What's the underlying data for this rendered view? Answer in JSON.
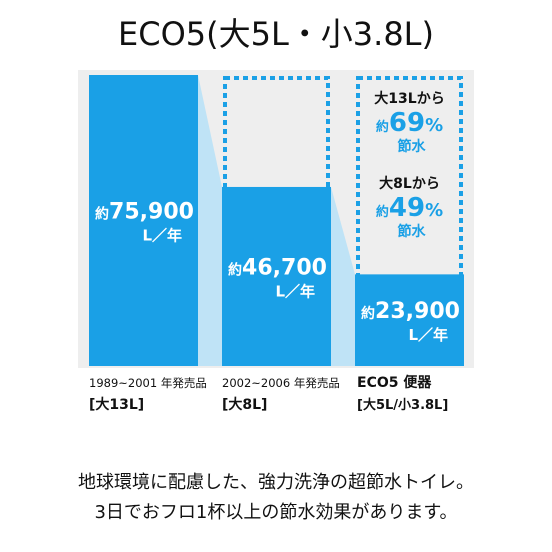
{
  "title": "ECO5(大5L・小3.8L)",
  "footer": {
    "line1": "地球環境に配慮した、強力洗浄の超節水トイレ。",
    "line2": "3日でおフロ1杯以上の節水効果があります。"
  },
  "colors": {
    "panel": "#eeeeee",
    "bar": "#1aa0e6",
    "connector": "#bfe3f6",
    "dashed": "#1aa0e6",
    "label_text": "#ffffff",
    "savings_text": "#1aa0e6",
    "axis_text": "#111111"
  },
  "chart_data": {
    "type": "bar",
    "categories": [
      "1989~2001 年発売品",
      "2002~2006 年発売品",
      "ECO5 便器"
    ],
    "category_sublabels": [
      "[大13L]",
      "[大8L]",
      "[大5L/小3.8L]"
    ],
    "values": [
      75900,
      46700,
      23900
    ],
    "value_labels": [
      {
        "prefix": "約",
        "number": "75,900",
        "unit": "L／年"
      },
      {
        "prefix": "約",
        "number": "46,700",
        "unit": "L／年"
      },
      {
        "prefix": "約",
        "number": "23,900",
        "unit": "L／年"
      }
    ],
    "reference_outline_value": 75900,
    "savings": [
      {
        "from": "大13Lから",
        "prefix": "約",
        "number": "69",
        "unit": "%",
        "suffix": "節水"
      },
      {
        "from": "大8Lから",
        "prefix": "約",
        "number": "49",
        "unit": "%",
        "suffix": "節水"
      }
    ],
    "ylim": [
      0,
      75900
    ],
    "grid": false
  }
}
